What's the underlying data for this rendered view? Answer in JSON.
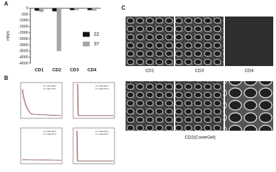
{
  "panel_labels": [
    "A",
    "B",
    "C"
  ],
  "chart_data": {
    "type": "bar",
    "y_label": "mN/s",
    "categories": [
      "CD1",
      "CD2",
      "CD3",
      "CD4"
    ],
    "series": [
      {
        "name": "22",
        "color": "#111111",
        "values": [
          -200,
          -250,
          -150,
          -150
        ]
      },
      {
        "name": "37",
        "color": "#a6a6a6",
        "values": [
          -300,
          -3500,
          -150,
          -200
        ]
      }
    ],
    "ylim": [
      -4500,
      0
    ],
    "yticks": [
      0,
      -500,
      -1000,
      -1500,
      -2000,
      -2500,
      -3000,
      -3500,
      -4000,
      -4500
    ]
  },
  "rheology_plots": [
    {
      "legend": [
        "CD1 22°C",
        "CD1 37°C"
      ]
    },
    {
      "legend": [
        "CD2 22°C",
        "CD2 37°C"
      ]
    },
    {
      "legend": [
        "CD3 22°C",
        "CD3 37°C"
      ]
    },
    {
      "legend": [
        "CD4 22°C",
        "CD4 37°C"
      ]
    }
  ],
  "sem_images": {
    "top_labels": [
      "CD1",
      "CD3",
      "CD4"
    ],
    "bottom_label": "CD2(CoverGel)"
  }
}
